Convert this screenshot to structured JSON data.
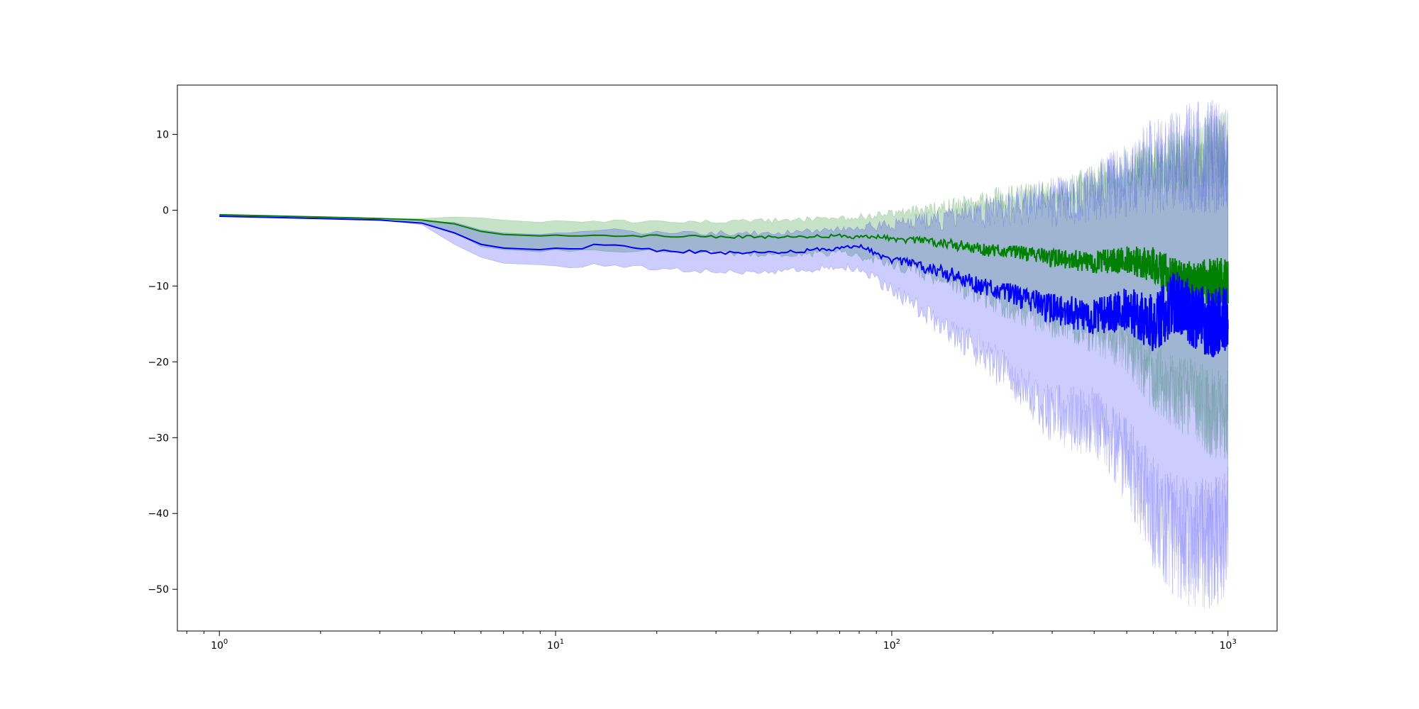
{
  "chart_data": {
    "type": "line",
    "xscale": "log",
    "xlim": [
      0.75,
      1400
    ],
    "ylim": [
      -55.5,
      16.5
    ],
    "grid": false,
    "title": "",
    "xlabel": "",
    "ylabel": "",
    "x_ticks": [
      {
        "value": 1,
        "base": "10",
        "exp": "0"
      },
      {
        "value": 10,
        "base": "10",
        "exp": "1"
      },
      {
        "value": 100,
        "base": "10",
        "exp": "2"
      },
      {
        "value": 1000,
        "base": "10",
        "exp": "3"
      }
    ],
    "y_ticks": [
      {
        "value": 10,
        "label": "10"
      },
      {
        "value": 0,
        "label": "0"
      },
      {
        "value": -10,
        "label": "−10"
      },
      {
        "value": -20,
        "label": "−20"
      },
      {
        "value": -30,
        "label": "−30"
      },
      {
        "value": -40,
        "label": "−40"
      },
      {
        "value": -50,
        "label": "−50"
      }
    ],
    "series": [
      {
        "color": "#008000",
        "band_color": "#008000",
        "band_opacity": 0.22,
        "points": [
          [
            1,
            -0.6,
            -0.6,
            -0.6
          ],
          [
            2,
            -0.9,
            -0.9,
            -0.9
          ],
          [
            3,
            -1.1,
            -1.1,
            -1.1
          ],
          [
            4,
            -1.3,
            -1.5,
            -1.1
          ],
          [
            5,
            -1.8,
            -2.9,
            -0.9
          ],
          [
            6,
            -2.8,
            -4.8,
            -1.0
          ],
          [
            7,
            -3.2,
            -5.2,
            -1.3
          ],
          [
            9,
            -3.4,
            -5.5,
            -1.6
          ],
          [
            12,
            -3.3,
            -5.2,
            -1.4
          ],
          [
            20,
            -3.4,
            -5.4,
            -1.6
          ],
          [
            30,
            -3.5,
            -5.6,
            -1.5
          ],
          [
            50,
            -3.5,
            -6.0,
            -1.3
          ],
          [
            70,
            -3.4,
            -5.5,
            -1.1
          ],
          [
            100,
            -3.7,
            -7.0,
            -0.5
          ],
          [
            150,
            -4.5,
            -9.5,
            0.5
          ],
          [
            200,
            -5.3,
            -12.0,
            1.5
          ],
          [
            300,
            -6.3,
            -14.5,
            2.0
          ],
          [
            400,
            -6.8,
            -16.0,
            3.5
          ],
          [
            500,
            -6.5,
            -18.0,
            5.0
          ],
          [
            600,
            -7.2,
            -22.0,
            6.0
          ],
          [
            700,
            -9.0,
            -24.0,
            6.5
          ],
          [
            800,
            -9.5,
            -25.0,
            7.0
          ],
          [
            900,
            -9.3,
            -27.0,
            8.0
          ],
          [
            1000,
            -9.5,
            -27.0,
            8.0
          ]
        ]
      },
      {
        "color": "#0000ff",
        "band_color": "#0000ff",
        "band_opacity": 0.2,
        "points": [
          [
            1,
            -0.8,
            -0.8,
            -0.8
          ],
          [
            2,
            -1.1,
            -1.1,
            -1.1
          ],
          [
            3,
            -1.3,
            -1.3,
            -1.3
          ],
          [
            4,
            -1.7,
            -1.9,
            -1.5
          ],
          [
            5,
            -3.0,
            -4.5,
            -1.6
          ],
          [
            6,
            -4.5,
            -6.2,
            -2.6
          ],
          [
            7,
            -5.0,
            -7.0,
            -3.0
          ],
          [
            9,
            -5.2,
            -7.2,
            -3.2
          ],
          [
            12,
            -5.0,
            -7.5,
            -2.8
          ],
          [
            13,
            -4.4,
            -7.0,
            -2.5
          ],
          [
            20,
            -5.3,
            -7.8,
            -3.0
          ],
          [
            30,
            -5.6,
            -8.2,
            -3.0
          ],
          [
            50,
            -5.5,
            -8.0,
            -3.0
          ],
          [
            70,
            -5.0,
            -7.5,
            -2.5
          ],
          [
            80,
            -4.8,
            -7.8,
            -2.2
          ],
          [
            100,
            -6.5,
            -10.5,
            -2.0
          ],
          [
            150,
            -8.5,
            -16.0,
            -1.0
          ],
          [
            200,
            -10.5,
            -20.0,
            0.0
          ],
          [
            300,
            -13.0,
            -27.0,
            1.0
          ],
          [
            400,
            -14.0,
            -28.0,
            2.5
          ],
          [
            500,
            -13.0,
            -33.0,
            4.0
          ],
          [
            600,
            -15.0,
            -40.0,
            6.0
          ],
          [
            700,
            -12.0,
            -43.0,
            6.5
          ],
          [
            800,
            -14.0,
            -44.0,
            7.0
          ],
          [
            900,
            -15.0,
            -44.0,
            7.0
          ],
          [
            1000,
            -14.0,
            -42.0,
            6.5
          ]
        ]
      }
    ]
  }
}
